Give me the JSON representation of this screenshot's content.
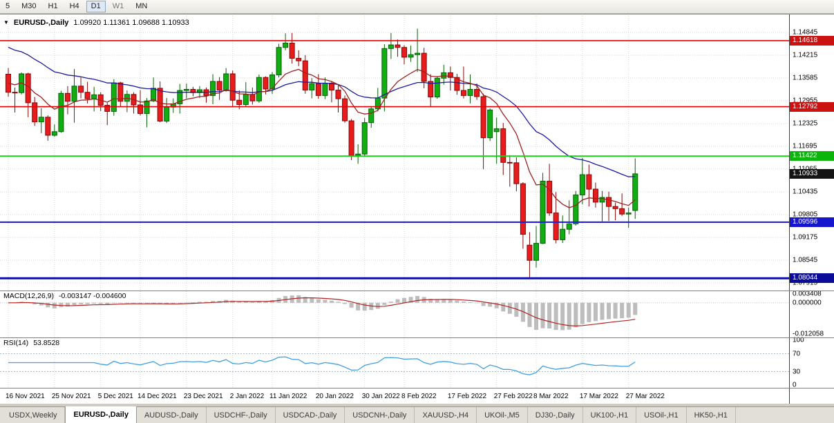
{
  "toolbar": {
    "timeframes": [
      {
        "label": "5"
      },
      {
        "label": "M30"
      },
      {
        "label": "H1"
      },
      {
        "label": "H4"
      },
      {
        "label": "D1",
        "active": true
      },
      {
        "label": "W1",
        "dim": true
      },
      {
        "label": "MN"
      }
    ]
  },
  "header": {
    "symbol": "EURUSD-,Daily",
    "ohlc": "1.09920 1.11361 1.09688 1.10933"
  },
  "chart_data": {
    "type": "candlestick",
    "symbol": "EURUSD",
    "timeframe": "Daily",
    "open": 1.0992,
    "high": 1.11361,
    "low": 1.09688,
    "close": 1.10933,
    "style": {
      "up_color": "#12ad12",
      "up_stroke": "#046004",
      "down_color": "#e81c1c",
      "down_stroke": "#840707",
      "grid_color": "#d6d6d6"
    },
    "price_axis_ticks": [
      1.14845,
      1.14215,
      1.13585,
      1.12955,
      1.12325,
      1.11695,
      1.11065,
      1.10435,
      1.09805,
      1.09175,
      1.08545,
      1.07915
    ],
    "levels": [
      {
        "price": 1.14618,
        "color": "#e00000",
        "thickness": 1.6,
        "badge_bg": "#cc1111"
      },
      {
        "price": 1.12792,
        "color": "#e00000",
        "thickness": 1.6,
        "badge_bg": "#cc1111"
      },
      {
        "price": 1.11422,
        "color": "#19d219",
        "thickness": 2.0,
        "badge_bg": "#0cb50c"
      },
      {
        "price": 1.09596,
        "color": "#2222dd",
        "thickness": 2.2,
        "badge_bg": "#1616cc"
      },
      {
        "price": 1.08044,
        "color": "#0d0da8",
        "thickness": 3.0,
        "badge_bg": "#0b0b99"
      }
    ],
    "current_price": {
      "value": 1.10933,
      "badge_bg": "#141414"
    },
    "overlays": [
      {
        "name": "ma-slow",
        "period": 30,
        "seed": 1.1452,
        "color": "#1a1a9e"
      },
      {
        "name": "ma-fast",
        "period": 10,
        "seed": 1.135,
        "color": "#9e2020"
      }
    ],
    "macd": {
      "label": "MACD(12,26,9)",
      "values_text": "-0.003147 -0.004600",
      "fast": 12,
      "slow": 26,
      "signal": 9,
      "axis_values": [
        0.003408,
        0,
        -0.012058
      ],
      "histogram_color": "#bdbdbd",
      "signal_color": "#b22222"
    },
    "rsi": {
      "label": "RSI(14)",
      "value_text": "53.8528",
      "period": 14,
      "levels": [
        70,
        30
      ],
      "axis_values": [
        100,
        70,
        30,
        0
      ],
      "line_color": "#3f9fdd"
    },
    "date_ticks": [
      {
        "i": 0,
        "label": "16 Nov 2021"
      },
      {
        "i": 7,
        "label": "25 Nov 2021"
      },
      {
        "i": 14,
        "label": "5 Dec 2021"
      },
      {
        "i": 20,
        "label": "14 Dec 2021"
      },
      {
        "i": 27,
        "label": "23 Dec 2021"
      },
      {
        "i": 34,
        "label": "2 Jan 2022"
      },
      {
        "i": 40,
        "label": "11 Jan 2022"
      },
      {
        "i": 47,
        "label": "20 Jan 2022"
      },
      {
        "i": 54,
        "label": "30 Jan 2022"
      },
      {
        "i": 60,
        "label": "8 Feb 2022"
      },
      {
        "i": 67,
        "label": "17 Feb 2022"
      },
      {
        "i": 74,
        "label": "27 Feb 2022"
      },
      {
        "i": 80,
        "label": "8 Mar 2022"
      },
      {
        "i": 87,
        "label": "17 Mar 2022"
      },
      {
        "i": 94,
        "label": "27 Mar 2022"
      }
    ],
    "candles": [
      [
        1.1369,
        1.1386,
        1.1307,
        1.1319
      ],
      [
        1.1319,
        1.1332,
        1.1263,
        1.1318
      ],
      [
        1.1318,
        1.1374,
        1.1313,
        1.137
      ],
      [
        1.137,
        1.1373,
        1.125,
        1.129
      ],
      [
        1.129,
        1.1306,
        1.1226,
        1.1237
      ],
      [
        1.1237,
        1.1275,
        1.1206,
        1.125
      ],
      [
        1.125,
        1.1255,
        1.1185,
        1.12
      ],
      [
        1.12,
        1.123,
        1.1196,
        1.121
      ],
      [
        1.121,
        1.1323,
        1.1207,
        1.1316
      ],
      [
        1.1316,
        1.1336,
        1.1258,
        1.1294
      ],
      [
        1.1294,
        1.1383,
        1.1235,
        1.1336
      ],
      [
        1.1336,
        1.136,
        1.1302,
        1.1319
      ],
      [
        1.1319,
        1.1348,
        1.1288,
        1.1301
      ],
      [
        1.1301,
        1.1334,
        1.1266,
        1.1312
      ],
      [
        1.1312,
        1.1319,
        1.1267,
        1.1283
      ],
      [
        1.1283,
        1.129,
        1.1228,
        1.1266
      ],
      [
        1.1266,
        1.1355,
        1.1254,
        1.1345
      ],
      [
        1.1345,
        1.1348,
        1.128,
        1.1294
      ],
      [
        1.1294,
        1.1324,
        1.1264,
        1.1313
      ],
      [
        1.1313,
        1.1319,
        1.126,
        1.1284
      ],
      [
        1.1284,
        1.1325,
        1.1255,
        1.126
      ],
      [
        1.126,
        1.1303,
        1.1222,
        1.1295
      ],
      [
        1.1295,
        1.136,
        1.1292,
        1.133
      ],
      [
        1.133,
        1.1349,
        1.1236,
        1.1239
      ],
      [
        1.1239,
        1.1303,
        1.1234,
        1.1278
      ],
      [
        1.1278,
        1.1302,
        1.1262,
        1.1287
      ],
      [
        1.1287,
        1.1342,
        1.126,
        1.1324
      ],
      [
        1.1324,
        1.1343,
        1.1302,
        1.1327
      ],
      [
        1.1327,
        1.1334,
        1.1308,
        1.1318
      ],
      [
        1.1318,
        1.1336,
        1.1303,
        1.1326
      ],
      [
        1.1326,
        1.1332,
        1.129,
        1.131
      ],
      [
        1.131,
        1.1369,
        1.1286,
        1.1349
      ],
      [
        1.1349,
        1.1361,
        1.1298,
        1.1325
      ],
      [
        1.1325,
        1.1386,
        1.1321,
        1.137
      ],
      [
        1.137,
        1.1379,
        1.1279,
        1.1297
      ],
      [
        1.1297,
        1.1324,
        1.1272,
        1.1285
      ],
      [
        1.1285,
        1.1347,
        1.128,
        1.1313
      ],
      [
        1.1313,
        1.1332,
        1.1285,
        1.1295
      ],
      [
        1.1295,
        1.1368,
        1.129,
        1.136
      ],
      [
        1.136,
        1.1363,
        1.1313,
        1.1328
      ],
      [
        1.1328,
        1.1375,
        1.1314,
        1.1367
      ],
      [
        1.1367,
        1.1453,
        1.136,
        1.1443
      ],
      [
        1.1443,
        1.1482,
        1.1435,
        1.1455
      ],
      [
        1.1455,
        1.1483,
        1.1398,
        1.1413
      ],
      [
        1.1413,
        1.1435,
        1.1391,
        1.1406
      ],
      [
        1.1406,
        1.1422,
        1.1315,
        1.1325
      ],
      [
        1.1325,
        1.1358,
        1.1302,
        1.1343
      ],
      [
        1.1343,
        1.1369,
        1.1301,
        1.131
      ],
      [
        1.131,
        1.136,
        1.13,
        1.1344
      ],
      [
        1.1344,
        1.1349,
        1.1291,
        1.1325
      ],
      [
        1.1325,
        1.134,
        1.1263,
        1.1301
      ],
      [
        1.1301,
        1.131,
        1.1235,
        1.124
      ],
      [
        1.124,
        1.1245,
        1.1131,
        1.1144
      ],
      [
        1.1144,
        1.1175,
        1.1121,
        1.1148
      ],
      [
        1.1148,
        1.1248,
        1.1141,
        1.1235
      ],
      [
        1.1235,
        1.1279,
        1.1221,
        1.1273
      ],
      [
        1.1273,
        1.1331,
        1.1266,
        1.1303
      ],
      [
        1.1303,
        1.1452,
        1.1266,
        1.144
      ],
      [
        1.144,
        1.1483,
        1.1411,
        1.145
      ],
      [
        1.145,
        1.1465,
        1.1417,
        1.1443
      ],
      [
        1.1443,
        1.1449,
        1.1396,
        1.1416
      ],
      [
        1.1416,
        1.1448,
        1.1403,
        1.1423
      ],
      [
        1.1423,
        1.1495,
        1.1375,
        1.1427
      ],
      [
        1.1427,
        1.1442,
        1.133,
        1.1349
      ],
      [
        1.1349,
        1.1369,
        1.1278,
        1.1306
      ],
      [
        1.1306,
        1.1363,
        1.1301,
        1.1358
      ],
      [
        1.1358,
        1.1395,
        1.134,
        1.1373
      ],
      [
        1.1373,
        1.139,
        1.1324,
        1.136
      ],
      [
        1.136,
        1.137,
        1.1312,
        1.1324
      ],
      [
        1.1324,
        1.139,
        1.1302,
        1.131
      ],
      [
        1.131,
        1.1368,
        1.1288,
        1.1327
      ],
      [
        1.1327,
        1.1343,
        1.1298,
        1.1307
      ],
      [
        1.1307,
        1.1315,
        1.1106,
        1.1193
      ],
      [
        1.1193,
        1.1274,
        1.1184,
        1.127
      ],
      [
        1.121,
        1.1249,
        1.1121,
        1.1218
      ],
      [
        1.1218,
        1.1234,
        1.109,
        1.1125
      ],
      [
        1.1125,
        1.1145,
        1.1058,
        1.1124
      ],
      [
        1.1124,
        1.1139,
        1.1045,
        1.1066
      ],
      [
        1.1066,
        1.107,
        1.0886,
        1.0926
      ],
      [
        1.0896,
        1.0932,
        1.0806,
        1.0854
      ],
      [
        1.0854,
        1.0949,
        1.0834,
        1.0901
      ],
      [
        1.0901,
        1.1096,
        1.0899,
        1.1073
      ],
      [
        1.1073,
        1.1121,
        1.0977,
        1.0985
      ],
      [
        1.0985,
        1.1043,
        1.0901,
        1.0911
      ],
      [
        1.0911,
        1.0978,
        1.0902,
        1.094
      ],
      [
        1.094,
        1.102,
        1.0926,
        1.0955
      ],
      [
        1.0955,
        1.1046,
        1.095,
        1.1035
      ],
      [
        1.1035,
        1.1137,
        1.1009,
        1.1091
      ],
      [
        1.1091,
        1.1119,
        1.1003,
        1.1051
      ],
      [
        1.1051,
        1.1069,
        1.1,
        1.1015
      ],
      [
        1.1015,
        1.1046,
        1.0962,
        1.1028
      ],
      [
        1.1028,
        1.1044,
        1.0963,
        1.1003
      ],
      [
        1.1003,
        1.1014,
        1.0965,
        1.0997
      ],
      [
        1.0997,
        1.1039,
        1.0977,
        1.0982
      ],
      [
        1.0982,
        1.1,
        1.0944,
        1.0985
      ],
      [
        1.0992,
        1.11361,
        1.09688,
        1.10933
      ]
    ]
  },
  "tabs": [
    {
      "label": "USDX,Weekly"
    },
    {
      "label": "EURUSD-,Daily",
      "active": true
    },
    {
      "label": "AUDUSD-,Daily"
    },
    {
      "label": "USDCHF-,Daily"
    },
    {
      "label": "USDCAD-,Daily"
    },
    {
      "label": "USDCNH-,Daily"
    },
    {
      "label": "XAUUSD-,H4"
    },
    {
      "label": "UKOil-,M5"
    },
    {
      "label": "DJ30-,Daily"
    },
    {
      "label": "UK100-,H1"
    },
    {
      "label": "USOil-,H1"
    },
    {
      "label": "HK50-,H1"
    }
  ]
}
